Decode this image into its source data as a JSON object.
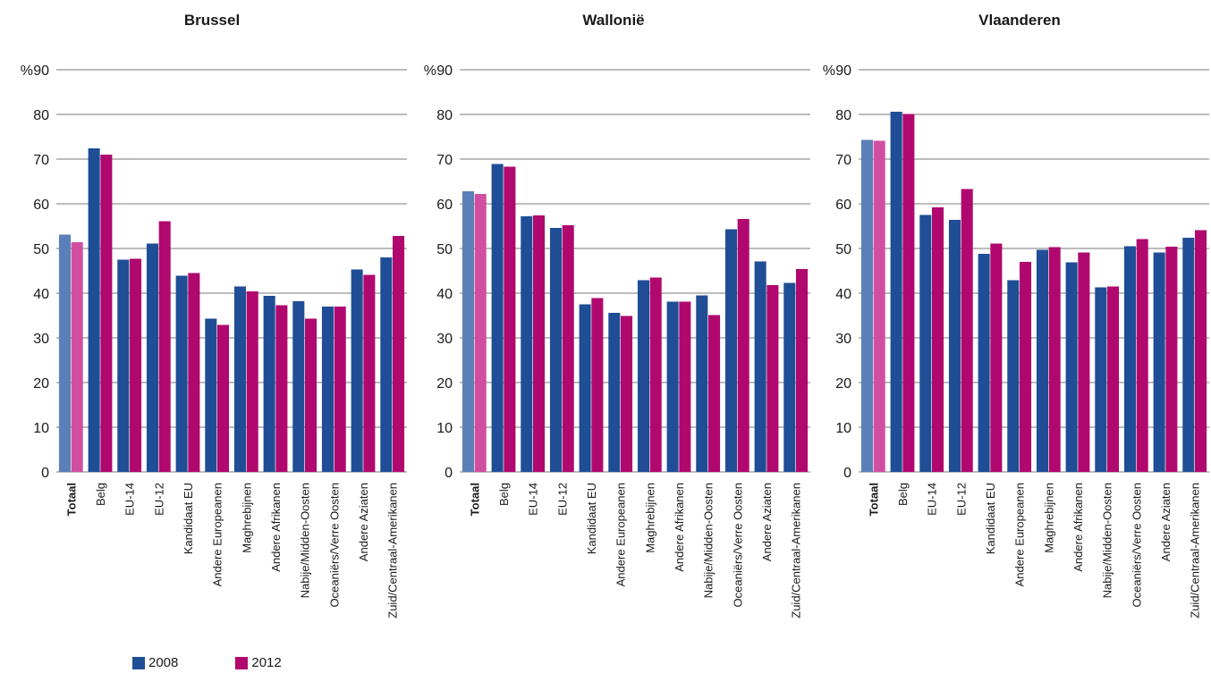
{
  "colors": {
    "s2008": "#1f4e96",
    "s2012": "#b0086e",
    "s2008_total": "#5b7fb8",
    "s2012_total": "#d04fa0"
  },
  "legend": [
    {
      "label": "2008",
      "color": "#1f4e96"
    },
    {
      "label": "2012",
      "color": "#b0086e"
    }
  ],
  "chart_data": [
    {
      "type": "bar",
      "title": "Brussel",
      "ylabel": "%",
      "ylim": [
        0,
        90
      ],
      "yticks": [
        0,
        10,
        20,
        30,
        40,
        50,
        60,
        70,
        80,
        90
      ],
      "grid": true,
      "categories": [
        "Totaal",
        "Belg",
        "EU-14",
        "EU-12",
        "Kandidaat EU",
        "Andere Europeanen",
        "Maghrebijnen",
        "Andere Afrikanen",
        "Nabije/Midden-Oosten",
        "Oceaniërs/Verre Oosten",
        "Andere Aziaten",
        "Zuid/Centraal-Amerikanen"
      ],
      "series": [
        {
          "name": "2008",
          "values": [
            53.1,
            72.4,
            47.5,
            51.1,
            43.9,
            34.3,
            41.5,
            39.4,
            38.2,
            37.0,
            45.3,
            48.0
          ]
        },
        {
          "name": "2012",
          "values": [
            51.4,
            71.0,
            47.7,
            56.1,
            44.5,
            32.9,
            40.4,
            37.3,
            34.3,
            37.0,
            44.1,
            52.8
          ]
        }
      ]
    },
    {
      "type": "bar",
      "title": "Wallonië",
      "ylabel": "%",
      "ylim": [
        0,
        90
      ],
      "yticks": [
        0,
        10,
        20,
        30,
        40,
        50,
        60,
        70,
        80,
        90
      ],
      "grid": true,
      "categories": [
        "Totaal",
        "Belg",
        "EU-14",
        "EU-12",
        "Kandidaat EU",
        "Andere Europeanen",
        "Maghrebijnen",
        "Andere Afrikanen",
        "Nabije/Midden-Oosten",
        "Oceaniërs/Verre Oosten",
        "Andere Aziaten",
        "Zuid/Centraal-Amerikanen"
      ],
      "series": [
        {
          "name": "2008",
          "values": [
            62.8,
            68.9,
            57.2,
            54.6,
            37.5,
            35.6,
            42.9,
            38.1,
            39.5,
            54.3,
            47.1,
            42.3
          ]
        },
        {
          "name": "2012",
          "values": [
            62.2,
            68.3,
            57.4,
            55.2,
            38.9,
            34.9,
            43.5,
            38.1,
            35.1,
            56.6,
            41.8,
            45.4
          ]
        }
      ]
    },
    {
      "type": "bar",
      "title": "Vlaanderen",
      "ylabel": "%",
      "ylim": [
        0,
        90
      ],
      "yticks": [
        0,
        10,
        20,
        30,
        40,
        50,
        60,
        70,
        80,
        90
      ],
      "grid": true,
      "categories": [
        "Totaal",
        "Belg",
        "EU-14",
        "EU-12",
        "Kandidaat EU",
        "Andere Europeanen",
        "Maghrebijnen",
        "Andere Afrikanen",
        "Nabije/Midden-Oosten",
        "Oceaniërs/Verre Oosten",
        "Andere Aziaten",
        "Zuid/Centraal-Amerikanen"
      ],
      "series": [
        {
          "name": "2008",
          "values": [
            74.3,
            80.6,
            57.5,
            56.4,
            48.8,
            42.9,
            49.7,
            46.9,
            41.3,
            50.5,
            49.1,
            52.4
          ]
        },
        {
          "name": "2012",
          "values": [
            74.1,
            80.1,
            59.2,
            63.3,
            51.1,
            47.0,
            50.3,
            49.1,
            41.5,
            52.1,
            50.4,
            54.1
          ]
        }
      ]
    }
  ]
}
